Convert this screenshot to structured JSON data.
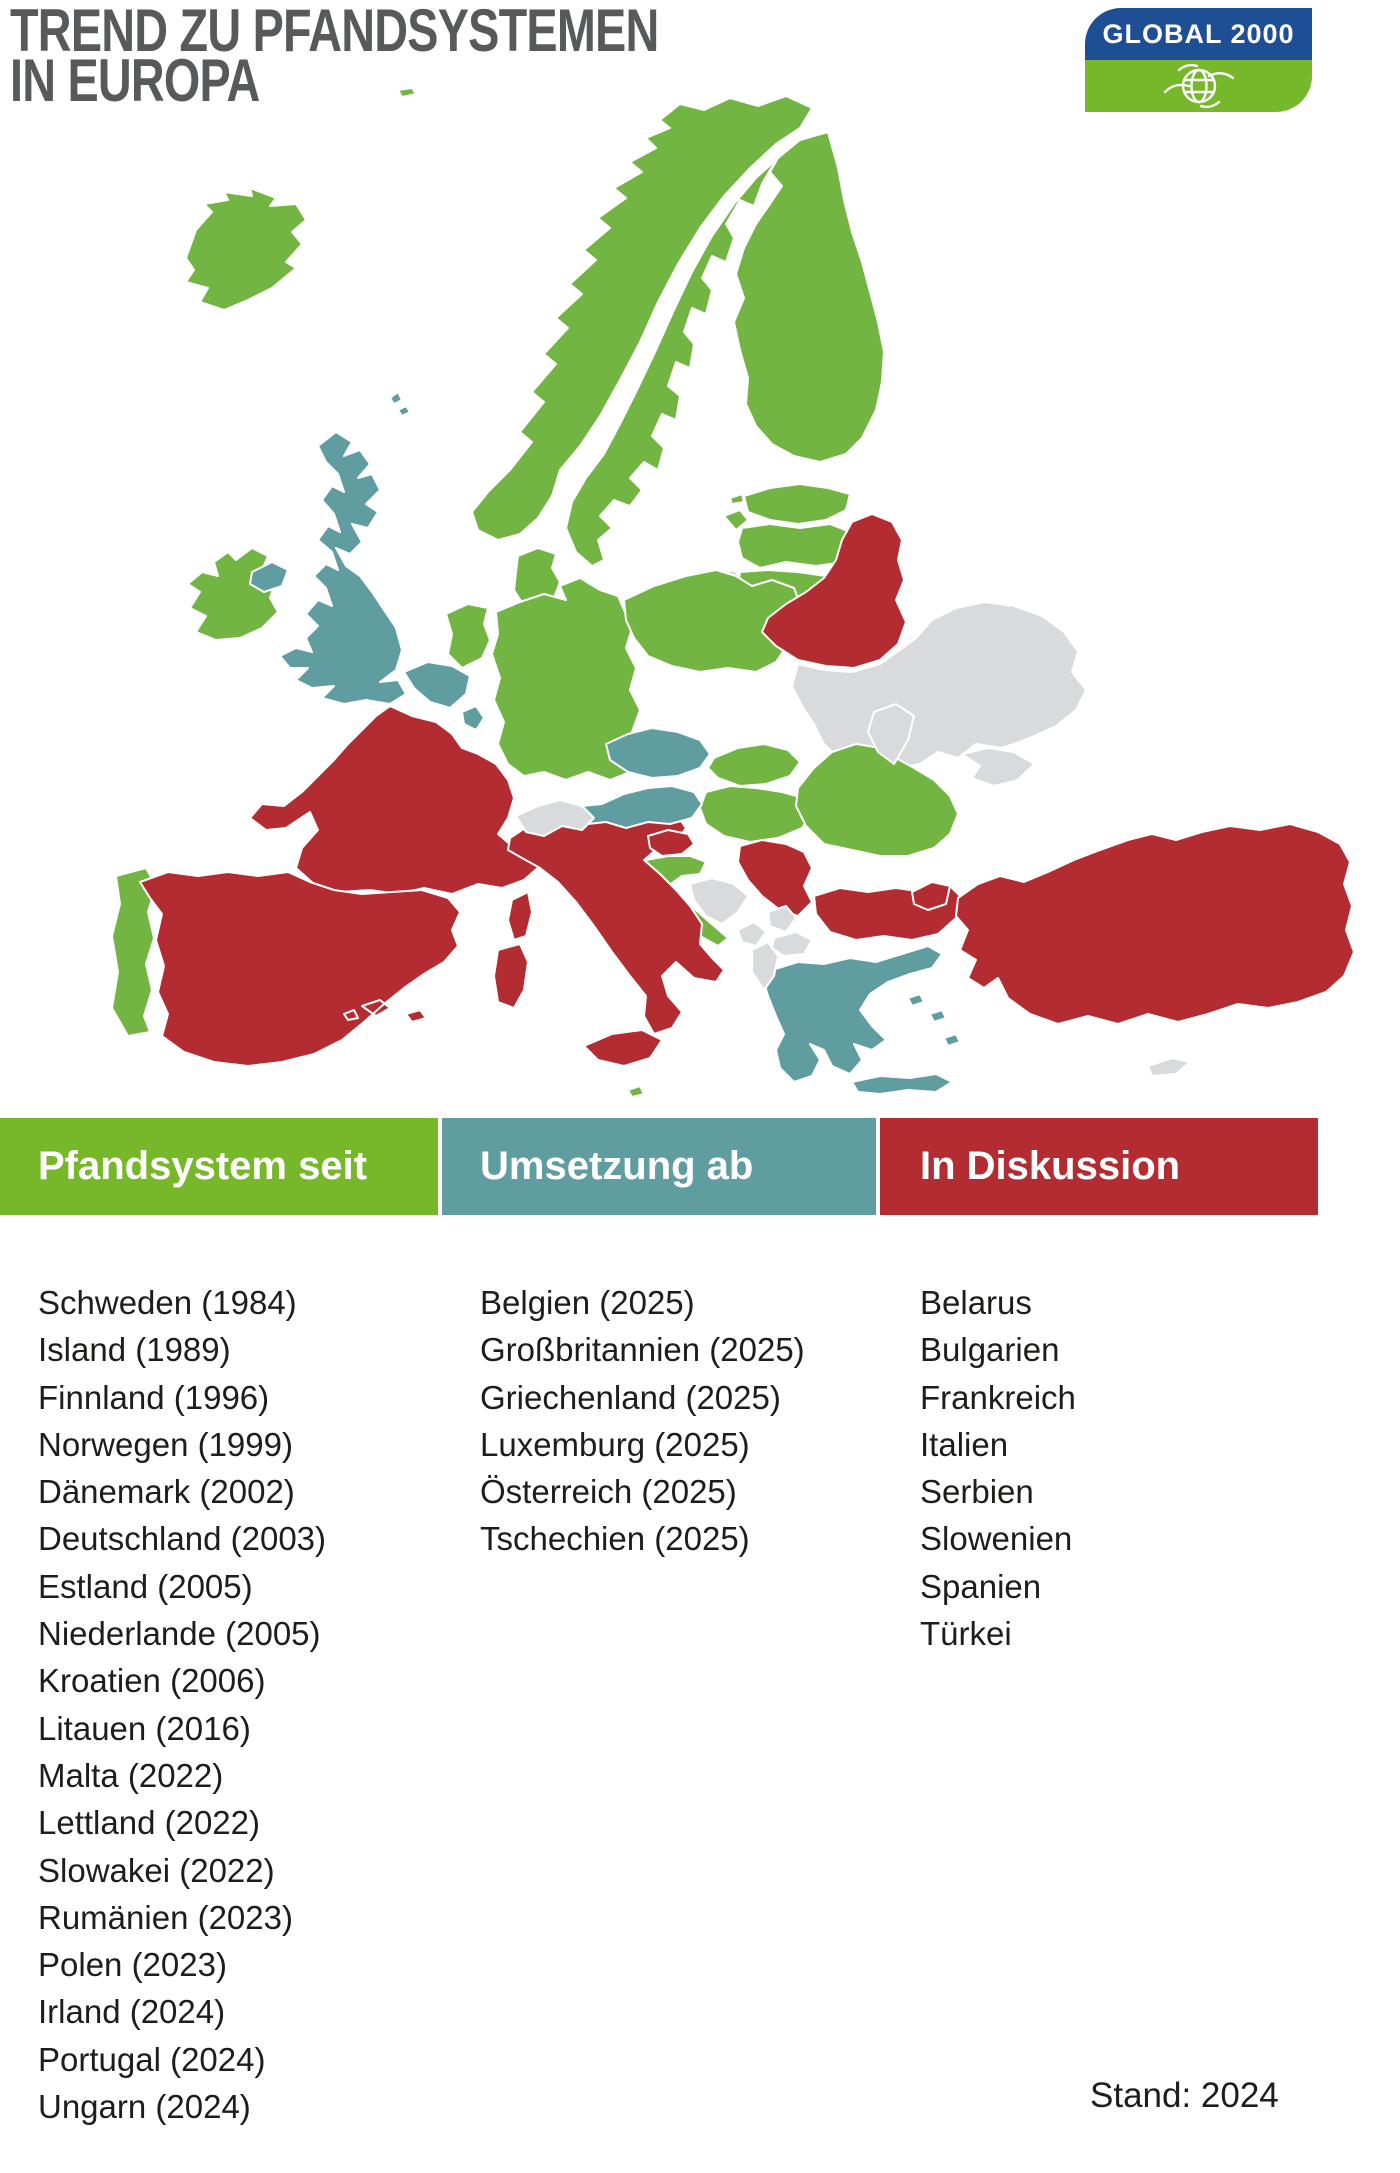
{
  "title": {
    "line1": "TREND ZU PFANDSYSTEMEN",
    "line2": "IN EUROPA"
  },
  "logo": {
    "text": "GLOBAL 2000",
    "blue": "#1e4e94",
    "green": "#76b82a"
  },
  "colors": {
    "pfandsystem": "#72b543",
    "umsetzung": "#609da1",
    "diskussion": "#b22c31",
    "keine_daten": "#d9dadb",
    "header_green": "#76b82a",
    "header_teal": "#609da1",
    "header_red": "#b22c31",
    "title_gray": "#58595b",
    "text": "#1d1d1b"
  },
  "legend": {
    "columns": [
      {
        "id": "pfandsystem",
        "header": "Pfandsystem seit",
        "color": "#76b82a",
        "items": [
          "Schweden (1984)",
          "Island (1989)",
          "Finnland (1996)",
          "Norwegen (1999)",
          "Dänemark (2002)",
          "Deutschland (2003)",
          "Estland (2005)",
          "Niederlande (2005)",
          "Kroatien (2006)",
          "Litauen (2016)",
          "Malta (2022)",
          "Lettland (2022)",
          "Slowakei (2022)",
          "Rumänien (2023)",
          "Polen (2023)",
          "Irland (2024)",
          "Portugal (2024)",
          "Ungarn (2024)"
        ]
      },
      {
        "id": "umsetzung",
        "header": "Umsetzung ab",
        "color": "#609da1",
        "items": [
          "Belgien (2025)",
          "Großbritannien (2025)",
          "Griechenland (2025)",
          "Luxemburg (2025)",
          "Österreich (2025)",
          "Tschechien (2025)"
        ]
      },
      {
        "id": "diskussion",
        "header": "In Diskussion",
        "color": "#b22c31",
        "items": [
          "Belarus",
          "Bulgarien",
          "Frankreich",
          "Italien",
          "Serbien",
          "Slowenien",
          "Spanien",
          "Türkei"
        ]
      }
    ]
  },
  "footer": {
    "stand": "Stand: 2024"
  },
  "map": {
    "countries": [
      {
        "id": "ukraine",
        "name": "Ukraine",
        "category": "keine_daten"
      },
      {
        "id": "kaliningrad",
        "name": "Kaliningrad",
        "category": "keine_daten"
      },
      {
        "id": "norwegen",
        "name": "Norwegen",
        "category": "pfandsystem"
      },
      {
        "id": "schweden",
        "name": "Schweden",
        "category": "pfandsystem"
      },
      {
        "id": "finnland",
        "name": "Finnland",
        "category": "pfandsystem"
      },
      {
        "id": "island",
        "name": "Island",
        "category": "pfandsystem"
      },
      {
        "id": "faeroeer",
        "name": "Färöer",
        "category": "pfandsystem"
      },
      {
        "id": "daenemark",
        "name": "Dänemark",
        "category": "pfandsystem"
      },
      {
        "id": "estland",
        "name": "Estland",
        "category": "pfandsystem"
      },
      {
        "id": "lettland",
        "name": "Lettland",
        "category": "pfandsystem"
      },
      {
        "id": "litauen",
        "name": "Litauen",
        "category": "pfandsystem"
      },
      {
        "id": "niederlande",
        "name": "Niederlande",
        "category": "pfandsystem"
      },
      {
        "id": "deutschland",
        "name": "Deutschland",
        "category": "pfandsystem"
      },
      {
        "id": "polen",
        "name": "Polen",
        "category": "pfandsystem"
      },
      {
        "id": "slowakei",
        "name": "Slowakei",
        "category": "pfandsystem"
      },
      {
        "id": "ungarn",
        "name": "Ungarn",
        "category": "pfandsystem"
      },
      {
        "id": "kroatien",
        "name": "Kroatien",
        "category": "pfandsystem"
      },
      {
        "id": "rumaenien",
        "name": "Rumänien",
        "category": "pfandsystem"
      },
      {
        "id": "irland",
        "name": "Irland",
        "category": "pfandsystem"
      },
      {
        "id": "portugal",
        "name": "Portugal",
        "category": "pfandsystem"
      },
      {
        "id": "malta",
        "name": "Malta",
        "category": "pfandsystem"
      },
      {
        "id": "frankreich",
        "name": "Frankreich",
        "category": "diskussion"
      },
      {
        "id": "spanien",
        "name": "Spanien",
        "category": "diskussion"
      },
      {
        "id": "italien",
        "name": "Italien",
        "category": "diskussion"
      },
      {
        "id": "belarus",
        "name": "Belarus",
        "category": "diskussion"
      },
      {
        "id": "serbien",
        "name": "Serbien",
        "category": "diskussion"
      },
      {
        "id": "bulgarien",
        "name": "Bulgarien",
        "category": "diskussion"
      },
      {
        "id": "slowenien",
        "name": "Slowenien",
        "category": "diskussion"
      },
      {
        "id": "tuerkei",
        "name": "Türkei",
        "category": "diskussion"
      },
      {
        "id": "grossbritannien",
        "name": "Großbritannien",
        "category": "umsetzung"
      },
      {
        "id": "belgien",
        "name": "Belgien",
        "category": "umsetzung"
      },
      {
        "id": "luxemburg",
        "name": "Luxemburg",
        "category": "umsetzung"
      },
      {
        "id": "tschechien",
        "name": "Tschechien",
        "category": "umsetzung"
      },
      {
        "id": "oesterreich",
        "name": "Österreich",
        "category": "umsetzung"
      },
      {
        "id": "griechenland",
        "name": "Griechenland",
        "category": "umsetzung"
      },
      {
        "id": "schweiz",
        "name": "Schweiz",
        "category": "keine_daten"
      },
      {
        "id": "moldau",
        "name": "Moldau",
        "category": "keine_daten"
      },
      {
        "id": "bosnien",
        "name": "Bosnien und Herzegowina",
        "category": "keine_daten"
      },
      {
        "id": "montenegro",
        "name": "Montenegro",
        "category": "keine_daten"
      },
      {
        "id": "kosovo",
        "name": "Kosovo",
        "category": "keine_daten"
      },
      {
        "id": "albanien",
        "name": "Albanien",
        "category": "keine_daten"
      },
      {
        "id": "nordmazedonien",
        "name": "Nordmazedonien",
        "category": "keine_daten"
      },
      {
        "id": "zypern",
        "name": "Zypern",
        "category": "keine_daten"
      }
    ]
  }
}
